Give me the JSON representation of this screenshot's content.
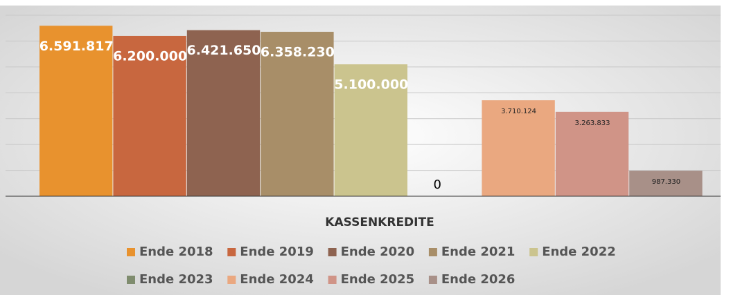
{
  "chart_data": {
    "type": "bar",
    "categories": [
      "KASSENKREDITE"
    ],
    "series": [
      {
        "name": "Ende 2018",
        "color": "#e8922e",
        "values": [
          6591817
        ],
        "value_labels": [
          "6.591.817"
        ]
      },
      {
        "name": "Ende 2019",
        "color": "#c8673f",
        "values": [
          6200000
        ],
        "value_labels": [
          "6.200.000"
        ]
      },
      {
        "name": "Ende 2020",
        "color": "#8e6350",
        "values": [
          6421650
        ],
        "value_labels": [
          "6.421.650"
        ]
      },
      {
        "name": "Ende 2021",
        "color": "#a88e68",
        "values": [
          6358230
        ],
        "value_labels": [
          "6.358.230"
        ]
      },
      {
        "name": "Ende 2022",
        "color": "#cbc48e",
        "values": [
          5100000
        ],
        "value_labels": [
          "5.100.000"
        ]
      },
      {
        "name": "Ende 2023",
        "color": "#7f8c6e",
        "values": [
          0
        ]
      },
      {
        "name": "Ende 2024",
        "color": "#eaa880",
        "values": [
          3710124
        ],
        "value_labels": [
          "3.710.124"
        ]
      },
      {
        "name": "Ende 2025",
        "color": "#d09487",
        "values": [
          3263833
        ],
        "value_labels": [
          "3.263.833"
        ]
      },
      {
        "name": "Ende 2026",
        "color": "#a89088",
        "values": [
          987330
        ],
        "value_labels": [
          "987.330"
        ]
      }
    ],
    "ylim": [
      0,
      7000000
    ],
    "yticks": [
      0,
      1000000,
      2000000,
      3000000,
      4000000,
      5000000,
      6000000,
      7000000
    ],
    "grid": true
  }
}
